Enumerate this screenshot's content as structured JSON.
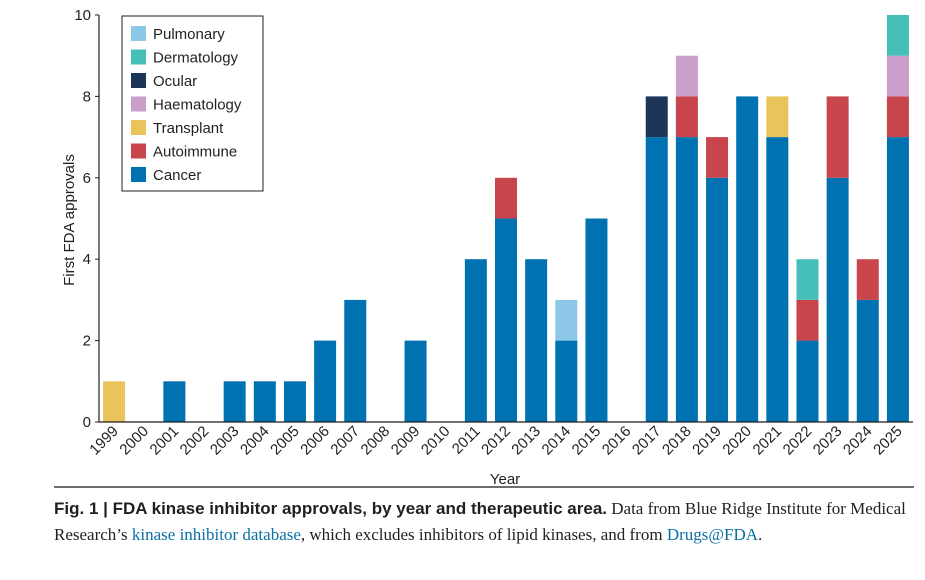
{
  "chart_data": {
    "type": "stacked-bar",
    "xlabel": "Year",
    "ylabel": "First FDA approvals",
    "ylim": [
      0,
      10
    ],
    "yticks": [
      0,
      2,
      4,
      6,
      8,
      10
    ],
    "categories": [
      "1999",
      "2000",
      "2001",
      "2002",
      "2003",
      "2004",
      "2005",
      "2006",
      "2007",
      "2008",
      "2009",
      "2010",
      "2011",
      "2012",
      "2013",
      "2014",
      "2015",
      "2016",
      "2017",
      "2018",
      "2019",
      "2020",
      "2021",
      "2022",
      "2023",
      "2024",
      "2025"
    ],
    "series": [
      {
        "name": "Cancer",
        "color": "#0072b1",
        "values": [
          0,
          0,
          1,
          0,
          1,
          1,
          1,
          2,
          3,
          0,
          2,
          0,
          4,
          5,
          4,
          2,
          5,
          0,
          7,
          7,
          6,
          8,
          7,
          2,
          6,
          3,
          7
        ]
      },
      {
        "name": "Autoimmune",
        "color": "#c8454b",
        "values": [
          0,
          0,
          0,
          0,
          0,
          0,
          0,
          0,
          0,
          0,
          0,
          0,
          0,
          1,
          0,
          0,
          0,
          0,
          0,
          1,
          1,
          0,
          0,
          1,
          2,
          1,
          1
        ]
      },
      {
        "name": "Transplant",
        "color": "#e8c45a",
        "values": [
          1,
          0,
          0,
          0,
          0,
          0,
          0,
          0,
          0,
          0,
          0,
          0,
          0,
          0,
          0,
          0,
          0,
          0,
          0,
          0,
          0,
          0,
          1,
          0,
          0,
          0,
          0
        ]
      },
      {
        "name": "Haematology",
        "color": "#cc9fcb",
        "values": [
          0,
          0,
          0,
          0,
          0,
          0,
          0,
          0,
          0,
          0,
          0,
          0,
          0,
          0,
          0,
          0,
          0,
          0,
          0,
          1,
          0,
          0,
          0,
          0,
          0,
          0,
          1
        ]
      },
      {
        "name": "Ocular",
        "color": "#1d3557",
        "values": [
          0,
          0,
          0,
          0,
          0,
          0,
          0,
          0,
          0,
          0,
          0,
          0,
          0,
          0,
          0,
          0,
          0,
          0,
          1,
          0,
          0,
          0,
          0,
          0,
          0,
          0,
          0
        ]
      },
      {
        "name": "Dermatology",
        "color": "#45bfb7",
        "values": [
          0,
          0,
          0,
          0,
          0,
          0,
          0,
          0,
          0,
          0,
          0,
          0,
          0,
          0,
          0,
          0,
          0,
          0,
          0,
          0,
          0,
          0,
          0,
          1,
          0,
          0,
          1
        ]
      },
      {
        "name": "Pulmonary",
        "color": "#8ec8e8",
        "values": [
          0,
          0,
          0,
          0,
          0,
          0,
          0,
          0,
          0,
          0,
          0,
          0,
          0,
          0,
          0,
          1,
          0,
          0,
          0,
          0,
          0,
          0,
          0,
          0,
          0,
          0,
          0
        ]
      }
    ],
    "legend_order": [
      "Pulmonary",
      "Dermatology",
      "Ocular",
      "Haematology",
      "Transplant",
      "Autoimmune",
      "Cancer"
    ],
    "legend_position": "top-left"
  },
  "caption": {
    "label": "Fig. 1 | FDA kinase inhibitor approvals, by year and therapeutic area.",
    "text1": " Data from Blue Ridge Institute for Medical Research’s ",
    "link1": "kinase inhibitor database",
    "text2": ", which excludes inhibitors of lipid kinases, and from ",
    "link2": "Drugs@FDA",
    "text3": "."
  }
}
